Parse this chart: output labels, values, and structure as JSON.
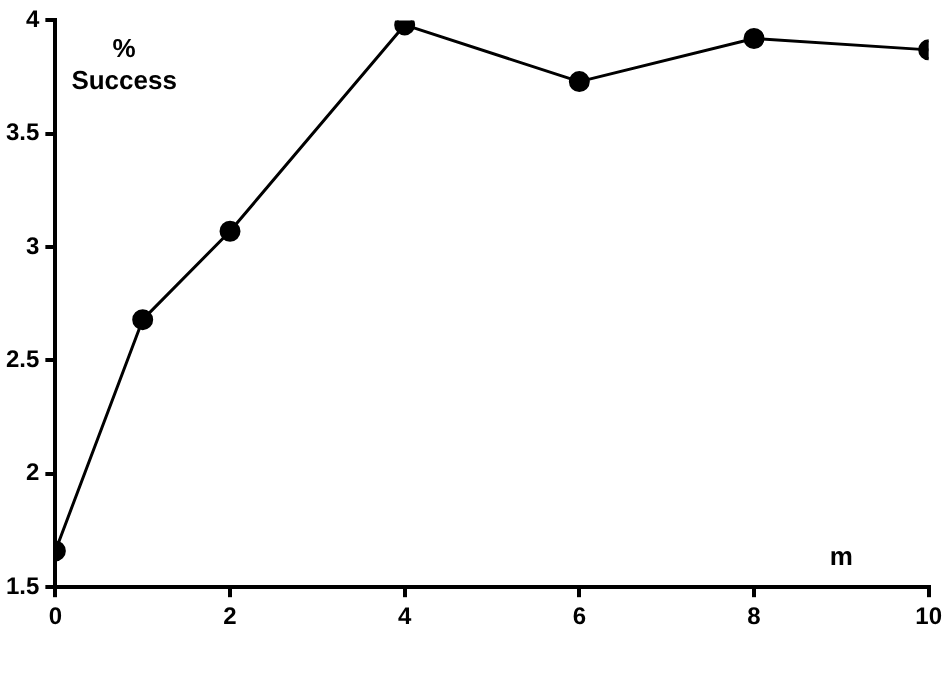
{
  "chart_data": {
    "type": "line",
    "xlabel": "m",
    "ylabel": "% Success",
    "x": [
      0,
      1,
      2,
      4,
      6,
      8,
      10
    ],
    "series": [
      {
        "color": "#000000",
        "values": [
          1.66,
          2.68,
          3.07,
          3.98,
          3.73,
          3.92,
          3.87
        ]
      }
    ],
    "xlim": [
      0,
      10
    ],
    "xticks": [
      0,
      2,
      4,
      6,
      8,
      10
    ],
    "ylim": [
      1.5,
      4
    ],
    "yticks": [
      1.5,
      2,
      2.5,
      3,
      3.5,
      4
    ],
    "grid": false,
    "legend": false,
    "marker": "circle",
    "line_style": "solid"
  }
}
